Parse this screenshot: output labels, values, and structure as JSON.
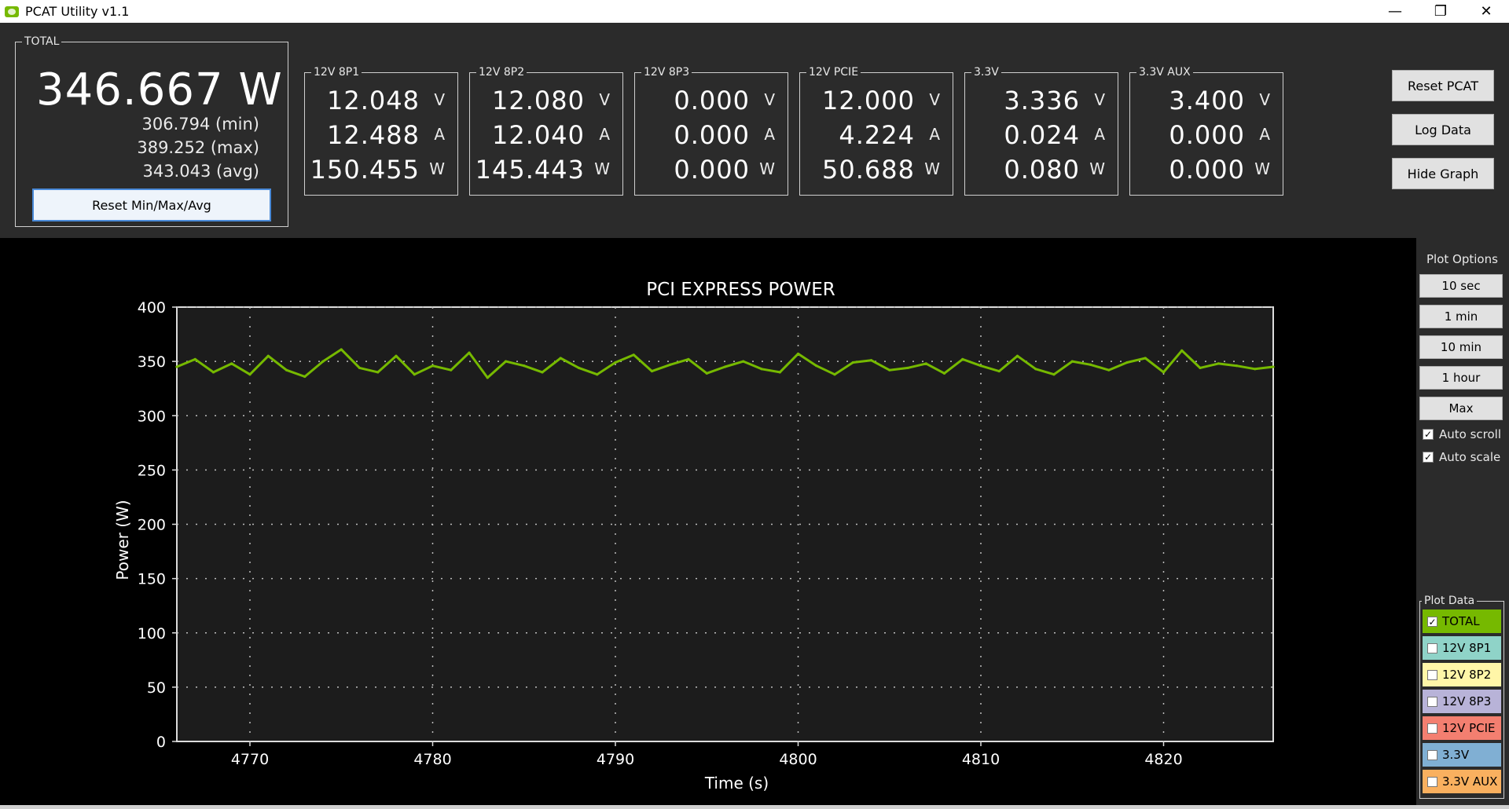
{
  "window": {
    "title": "PCAT Utility v1.1",
    "minimize": "—",
    "maximize": "❐",
    "close": "✕"
  },
  "total": {
    "label": "TOTAL",
    "value": "346.667 W",
    "min": "306.794 (min)",
    "max": "389.252 (max)",
    "avg": "343.043 (avg)",
    "reset_label": "Reset Min/Max/Avg"
  },
  "channels": [
    {
      "label": "12V 8P1",
      "voltage": "12.048",
      "current": "12.488",
      "power": "150.455"
    },
    {
      "label": "12V 8P2",
      "voltage": "12.080",
      "current": "12.040",
      "power": "145.443"
    },
    {
      "label": "12V 8P3",
      "voltage": "0.000",
      "current": "0.000",
      "power": "0.000"
    },
    {
      "label": "12V PCIE",
      "voltage": "12.000",
      "current": "4.224",
      "power": "50.688"
    },
    {
      "label": "3.3V",
      "voltage": "3.336",
      "current": "0.024",
      "power": "0.080"
    },
    {
      "label": "3.3V AUX",
      "voltage": "3.400",
      "current": "0.000",
      "power": "0.000"
    }
  ],
  "units": {
    "v": "V",
    "a": "A",
    "w": "W"
  },
  "buttons": {
    "reset_pcat": "Reset PCAT",
    "log_data": "Log Data",
    "hide_graph": "Hide Graph"
  },
  "plot_options": {
    "title": "Plot Options",
    "ranges": [
      "10 sec",
      "1 min",
      "10 min",
      "1 hour",
      "Max"
    ],
    "auto_scroll": "Auto scroll",
    "auto_scale": "Auto scale"
  },
  "plot_data": {
    "title": "Plot Data",
    "items": [
      {
        "label": "TOTAL",
        "checked": true,
        "color": "#76b900"
      },
      {
        "label": "12V 8P1",
        "checked": false,
        "color": "#8fd3c8"
      },
      {
        "label": "12V 8P2",
        "checked": false,
        "color": "#fff6a8"
      },
      {
        "label": "12V 8P3",
        "checked": false,
        "color": "#b8b3d8"
      },
      {
        "label": "12V PCIE",
        "checked": false,
        "color": "#f37f70"
      },
      {
        "label": "3.3V",
        "checked": false,
        "color": "#80afd3"
      },
      {
        "label": "3.3V AUX",
        "checked": false,
        "color": "#f9b05f"
      }
    ]
  },
  "chart_data": {
    "type": "line",
    "title": "PCI EXPRESS POWER",
    "xlabel": "Time (s)",
    "ylabel": "Power (W)",
    "xlim": [
      4766,
      4826
    ],
    "ylim": [
      0,
      400
    ],
    "xticks": [
      4770,
      4780,
      4790,
      4800,
      4810,
      4820
    ],
    "yticks": [
      0,
      50,
      100,
      150,
      200,
      250,
      300,
      350,
      400
    ],
    "grid": true,
    "line_color": "#76b900",
    "series": [
      {
        "name": "TOTAL",
        "x": [
          4766,
          4767,
          4768,
          4769,
          4770,
          4771,
          4772,
          4773,
          4774,
          4775,
          4776,
          4777,
          4778,
          4779,
          4780,
          4781,
          4782,
          4783,
          4784,
          4785,
          4786,
          4787,
          4788,
          4789,
          4790,
          4791,
          4792,
          4793,
          4794,
          4795,
          4796,
          4797,
          4798,
          4799,
          4800,
          4801,
          4802,
          4803,
          4804,
          4805,
          4806,
          4807,
          4808,
          4809,
          4810,
          4811,
          4812,
          4813,
          4814,
          4815,
          4816,
          4817,
          4818,
          4819,
          4820,
          4821,
          4822,
          4823,
          4824,
          4825,
          4826
        ],
        "values": [
          345,
          352,
          340,
          348,
          338,
          355,
          342,
          336,
          350,
          361,
          344,
          340,
          355,
          338,
          346,
          342,
          358,
          335,
          350,
          346,
          340,
          353,
          344,
          338,
          349,
          356,
          341,
          347,
          352,
          339,
          345,
          350,
          343,
          340,
          357,
          346,
          338,
          349,
          351,
          342,
          344,
          348,
          339,
          352,
          346,
          341,
          355,
          343,
          338,
          350,
          347,
          342,
          349,
          353,
          340,
          360,
          344,
          348,
          346,
          343,
          345
        ]
      }
    ]
  }
}
